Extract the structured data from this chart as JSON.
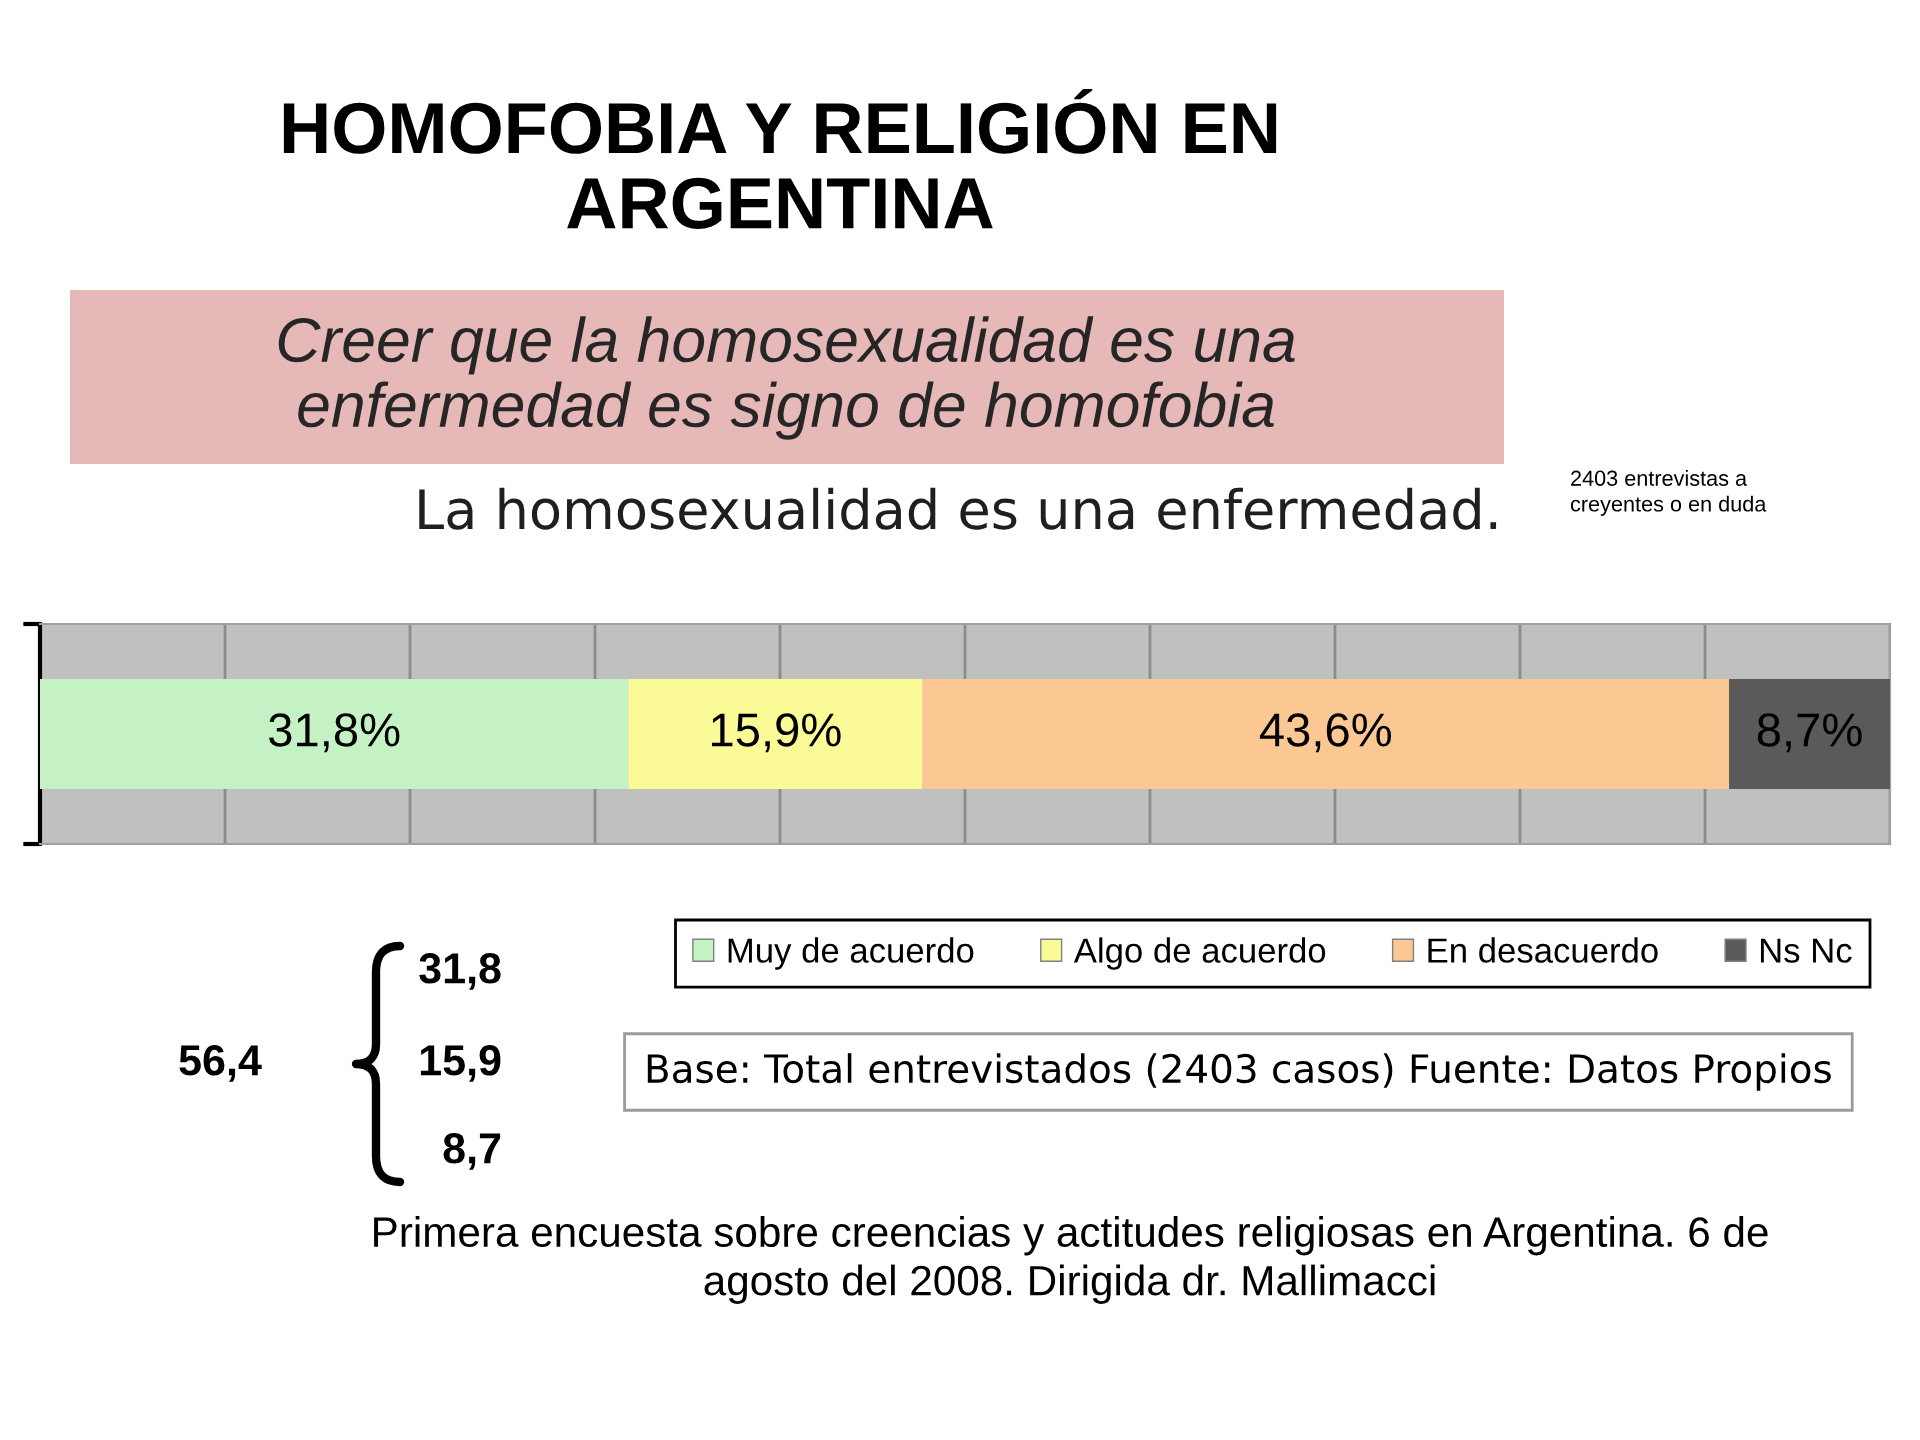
{
  "chart_data": {
    "type": "bar",
    "orientation": "horizontal",
    "stacked": true,
    "title": "HOMOFOBIA Y RELIGIÓN EN ARGENTINA",
    "subtitle": "Creer que la homosexualidad es una enfermedad es signo de homofobia",
    "categories": [
      null
    ],
    "series": [
      {
        "name": "Muy de acuerdo",
        "color": "#c4f2c4",
        "values": [
          31.8
        ],
        "value_labels": [
          "31,8%"
        ]
      },
      {
        "name": "Algo de acuerdo",
        "color": "#fafa96",
        "values": [
          15.9
        ],
        "value_labels": [
          "15,9%"
        ]
      },
      {
        "name": "En desacuerdo",
        "color": "#fbc792",
        "values": [
          43.6
        ],
        "value_labels": [
          "43,6%"
        ]
      },
      {
        "name": "Ns Nc",
        "color": "#5a5a5a",
        "values": [
          8.7
        ],
        "value_labels": [
          "8,7%"
        ]
      }
    ],
    "xlim": [
      0,
      100
    ],
    "xticks": [
      {
        "value": 0,
        "label": null
      },
      {
        "value": 10,
        "label": null
      },
      {
        "value": 20,
        "label": null
      },
      {
        "value": 30,
        "label": null
      },
      {
        "value": 40,
        "label": null
      },
      {
        "value": 50,
        "label": null
      },
      {
        "value": 60,
        "label": null
      },
      {
        "value": 70,
        "label": null
      },
      {
        "value": 80,
        "label": null
      },
      {
        "value": 90,
        "label": null
      },
      {
        "value": 100,
        "label": null
      }
    ],
    "grid": "x",
    "legend": "bottom",
    "tick_labels": false,
    "annotations": [
      "La homosexualidad es una enfermedad.",
      "2403 entrevistas a creyentes o en duda",
      "Base: Total entrevistados (2403 casos) Fuente: Datos Propios",
      "56,4",
      "31,8",
      "15,9",
      "8,7",
      "Primera encuesta sobre creencias y actitudes religiosas en Argentina. 6 de agosto del 2008. Dirigida dr. Mallimacci"
    ]
  }
}
